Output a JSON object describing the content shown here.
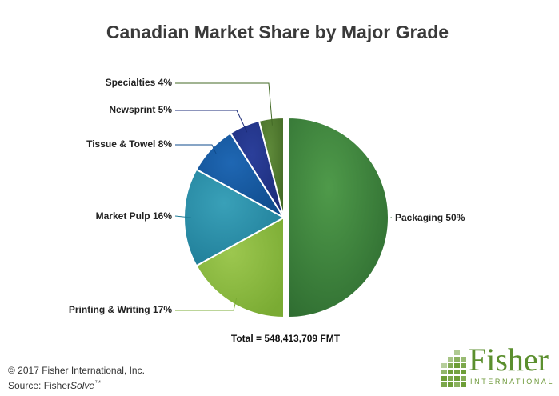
{
  "chart_data": {
    "type": "pie",
    "title": "Canadian Market Share by Major Grade",
    "slices": [
      {
        "label": "Packaging 50%",
        "value": 50,
        "color": "#4f9a4a",
        "color_dark": "#2f6d31",
        "explode": 6,
        "label_side": "right"
      },
      {
        "label": "Printing & Writing 17%",
        "value": 17,
        "color": "#9cc74f",
        "color_dark": "#7aab33",
        "explode": 0,
        "label_side": "left"
      },
      {
        "label": "Market Pulp 16%",
        "value": 16,
        "color": "#39a0b8",
        "color_dark": "#1f7d98",
        "explode": 0,
        "label_side": "left"
      },
      {
        "label": "Tissue & Towel 8%",
        "value": 8,
        "color": "#1f67b3",
        "color_dark": "#0f4b8c",
        "explode": 0,
        "label_side": "left"
      },
      {
        "label": "Newsprint 5%",
        "value": 5,
        "color": "#2b3f9a",
        "color_dark": "#1b2b78",
        "explode": 0,
        "label_side": "left"
      },
      {
        "label": "Specialties 4%",
        "value": 4,
        "color": "#5f8a3a",
        "color_dark": "#436a26",
        "explode": 0,
        "label_side": "left"
      }
    ],
    "total_label": "Total = 548,413,709 FMT"
  },
  "footer": {
    "copyright": "© 2017 Fisher International, Inc.",
    "source_prefix": "Source: Fisher",
    "source_italic": "Solve",
    "source_tm": "™"
  },
  "logo": {
    "word": "Fisher",
    "subtitle": "INTERNATIONAL",
    "color": "#5b8f2e"
  }
}
